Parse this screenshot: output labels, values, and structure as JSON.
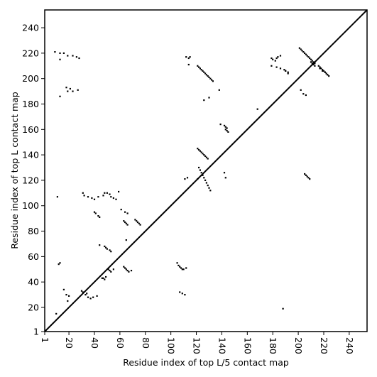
{
  "chart_data": {
    "type": "scatter",
    "title": "",
    "xlabel": "Residue index of top L/5 contact map",
    "ylabel": "Residue index of top L contact map",
    "xlim": [
      1,
      254
    ],
    "ylim": [
      1,
      254
    ],
    "x_ticks": [
      1,
      20,
      40,
      60,
      80,
      100,
      120,
      140,
      160,
      180,
      200,
      220,
      240
    ],
    "y_ticks": [
      1,
      20,
      40,
      60,
      80,
      100,
      120,
      140,
      160,
      180,
      200,
      220,
      240
    ],
    "grid": false,
    "diagonal": {
      "from": [
        1,
        1
      ],
      "to": [
        254,
        254
      ]
    },
    "marker": "square",
    "colors": {
      "points": "#000000",
      "axes": "#000000",
      "background": "#ffffff"
    },
    "series": [
      {
        "x": [
          9,
          13,
          16,
          19,
          23,
          26,
          28,
          13,
          18,
          19,
          21,
          23,
          27,
          13,
          31,
          32,
          35,
          38,
          40,
          43,
          47,
          48,
          50,
          52,
          53,
          55,
          57,
          59,
          61,
          64,
          66,
          63,
          64,
          65,
          66,
          44,
          10,
          12,
          13,
          16,
          18,
          19,
          20,
          48,
          49,
          50,
          52,
          53,
          72,
          73,
          74,
          75,
          76,
          11,
          65,
          40,
          41,
          43,
          44,
          46,
          47,
          48,
          49,
          51,
          52,
          53,
          55,
          30,
          31,
          33,
          34,
          35,
          37,
          39,
          42,
          63,
          64,
          65,
          66,
          67,
          69,
          112,
          114,
          111,
          113,
          107,
          109,
          111,
          105,
          106,
          107,
          108,
          109,
          110,
          112,
          121,
          122,
          123,
          124,
          125,
          126,
          127,
          128,
          129,
          130,
          131,
          132,
          133,
          121,
          122,
          123,
          124,
          125,
          126,
          127,
          128,
          129,
          126,
          130,
          139,
          142,
          143,
          144,
          143,
          144,
          145,
          121,
          122,
          123,
          124,
          125,
          126,
          127,
          128,
          129,
          130,
          131,
          115,
          114,
          138,
          142,
          143,
          179,
          180,
          182,
          183,
          184,
          186,
          190,
          192,
          179,
          183,
          186,
          189,
          190,
          192,
          201,
          202,
          203,
          204,
          205,
          206,
          207,
          208,
          209,
          210,
          211,
          212,
          213,
          210,
          211,
          212,
          213,
          216,
          217,
          218,
          219,
          220,
          221,
          222,
          223,
          224,
          217,
          219,
          221,
          222,
          223,
          202,
          204,
          206,
          205,
          206,
          207,
          208,
          209,
          188,
          168
        ],
        "y": [
          221,
          220,
          220,
          218,
          218,
          217,
          216,
          215,
          193,
          190,
          192,
          190,
          191,
          186,
          110,
          108,
          107,
          106,
          105,
          107,
          108,
          110,
          110,
          109,
          107,
          106,
          105,
          111,
          97,
          95,
          94,
          88,
          87,
          86,
          85,
          69,
          15,
          54,
          55,
          34,
          30,
          25,
          29,
          68,
          67,
          66,
          65,
          64,
          89,
          88,
          87,
          86,
          85,
          107,
          73,
          95,
          94,
          92,
          91,
          43,
          43,
          42,
          44,
          50,
          49,
          48,
          50,
          33,
          32,
          30,
          31,
          28,
          27,
          28,
          29,
          52,
          51,
          50,
          49,
          48,
          49,
          217,
          211,
          121,
          122,
          32,
          31,
          30,
          55,
          53,
          52,
          51,
          50,
          50,
          51,
          210,
          209,
          208,
          207,
          206,
          205,
          204,
          203,
          202,
          201,
          200,
          199,
          198,
          145,
          144,
          143,
          142,
          141,
          140,
          139,
          138,
          137,
          183,
          185,
          164,
          163,
          162,
          161,
          160,
          159,
          158,
          121,
          130,
          128,
          126,
          124,
          122,
          120,
          118,
          116,
          114,
          112,
          217,
          216,
          191,
          126,
          122,
          216,
          215,
          214,
          216,
          217,
          218,
          206,
          204,
          210,
          209,
          208,
          207,
          206,
          205,
          224,
          223,
          222,
          221,
          220,
          219,
          218,
          217,
          216,
          215,
          214,
          213,
          212,
          213,
          212,
          211,
          210,
          210,
          209,
          208,
          207,
          206,
          205,
          204,
          203,
          202,
          208,
          206,
          205,
          204,
          203,
          191,
          188,
          187,
          125,
          124,
          123,
          122,
          121,
          19,
          176
        ]
      }
    ]
  }
}
